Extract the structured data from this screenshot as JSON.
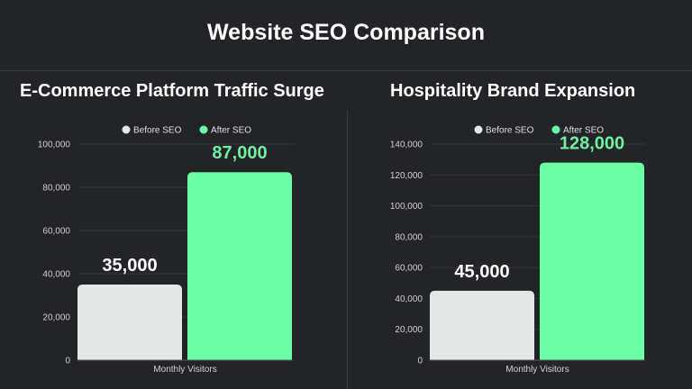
{
  "title": "Website SEO Comparison",
  "colors": {
    "before": "#e3e8e7",
    "after": "#6bfea6",
    "after_label": "#6ef0a0"
  },
  "chart_data": [
    {
      "type": "bar",
      "title": "E-Commerce Platform Traffic Surge",
      "categories": [
        "Monthly Visitors"
      ],
      "series": [
        {
          "name": "Before SEO",
          "values": [
            35000
          ]
        },
        {
          "name": "After SEO",
          "values": [
            87000
          ]
        }
      ],
      "value_labels": [
        "35,000",
        "87,000"
      ],
      "ylim": [
        0,
        100000
      ],
      "yticks": [
        0,
        20000,
        40000,
        60000,
        80000,
        100000
      ],
      "ytick_labels": [
        "0",
        "20,000",
        "40,000",
        "60,000",
        "80,000",
        "100,000"
      ],
      "legend": "top",
      "grid": true
    },
    {
      "type": "bar",
      "title": "Hospitality Brand Expansion",
      "categories": [
        "Monthly Visitors"
      ],
      "series": [
        {
          "name": "Before SEO",
          "values": [
            45000
          ]
        },
        {
          "name": "After SEO",
          "values": [
            128000
          ]
        }
      ],
      "value_labels": [
        "45,000",
        "128,000"
      ],
      "ylim": [
        0,
        140000
      ],
      "yticks": [
        0,
        20000,
        40000,
        60000,
        80000,
        100000,
        120000,
        140000
      ],
      "ytick_labels": [
        "0",
        "20,000",
        "40,000",
        "60,000",
        "80,000",
        "100,000",
        "120,000",
        "140,000"
      ],
      "legend": "top",
      "grid": true
    }
  ]
}
